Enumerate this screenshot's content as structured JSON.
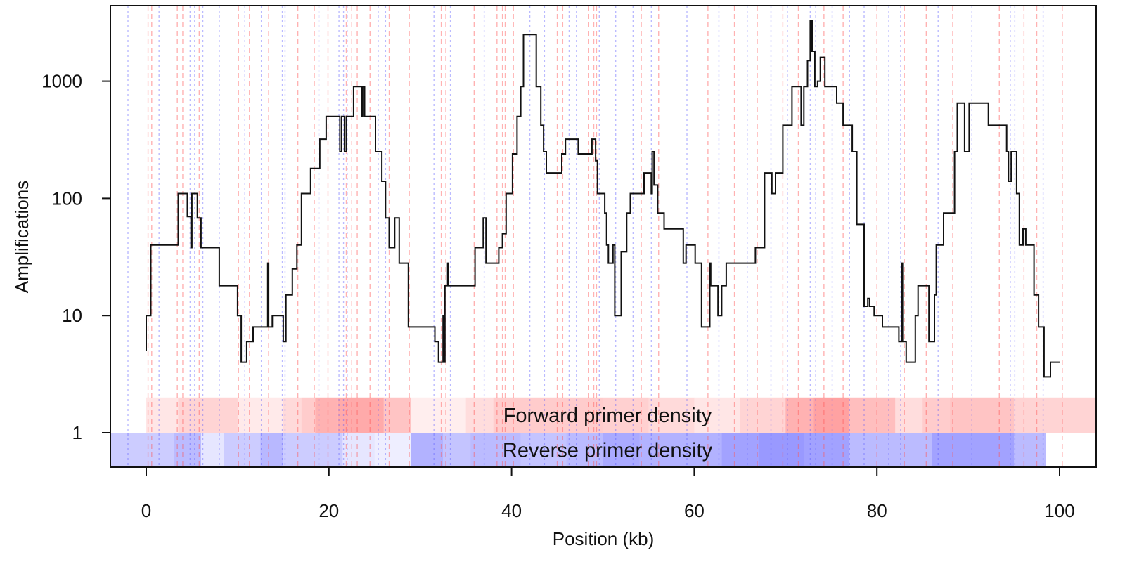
{
  "chart_data": {
    "type": "line",
    "xlabel": "Position (kb)",
    "ylabel": "Amplifications",
    "xlim": [
      -4,
      104
    ],
    "ylim": [
      0.5,
      4500
    ],
    "yscale": "log",
    "xticks": [
      0,
      20,
      40,
      60,
      80,
      100
    ],
    "yticks": [
      1,
      10,
      100,
      1000
    ],
    "colors": {
      "line": "#111111",
      "forward": "#ff5555",
      "reverse": "#5555ff",
      "frame": "#111111"
    },
    "amplification_profile": {
      "name": "",
      "points": [
        [
          0.0,
          5
        ],
        [
          0.0,
          10
        ],
        [
          0.5,
          10
        ],
        [
          0.5,
          40
        ],
        [
          3.5,
          40
        ],
        [
          3.5,
          110
        ],
        [
          4.5,
          110
        ],
        [
          4.5,
          70
        ],
        [
          4.9,
          70
        ],
        [
          4.9,
          38
        ],
        [
          5.0,
          38
        ],
        [
          5.0,
          110
        ],
        [
          5.6,
          110
        ],
        [
          5.6,
          68
        ],
        [
          6.0,
          68
        ],
        [
          6.0,
          38
        ],
        [
          8.0,
          38
        ],
        [
          8.0,
          18
        ],
        [
          10.0,
          18
        ],
        [
          10.0,
          10
        ],
        [
          10.4,
          10
        ],
        [
          10.4,
          4
        ],
        [
          11.0,
          4
        ],
        [
          11.0,
          6
        ],
        [
          11.7,
          6
        ],
        [
          11.7,
          8
        ],
        [
          13.3,
          8
        ],
        [
          13.3,
          28
        ],
        [
          13.4,
          28
        ],
        [
          13.4,
          8
        ],
        [
          13.8,
          8
        ],
        [
          13.8,
          10
        ],
        [
          15.0,
          10
        ],
        [
          15.0,
          6
        ],
        [
          15.3,
          6
        ],
        [
          15.3,
          15
        ],
        [
          16.0,
          15
        ],
        [
          16.0,
          25
        ],
        [
          16.5,
          25
        ],
        [
          16.5,
          40
        ],
        [
          17.0,
          40
        ],
        [
          17.0,
          110
        ],
        [
          18.0,
          110
        ],
        [
          18.0,
          180
        ],
        [
          19.0,
          180
        ],
        [
          19.0,
          320
        ],
        [
          19.7,
          320
        ],
        [
          19.7,
          500
        ],
        [
          21.2,
          500
        ],
        [
          21.2,
          250
        ],
        [
          21.4,
          250
        ],
        [
          21.4,
          500
        ],
        [
          21.7,
          500
        ],
        [
          21.7,
          250
        ],
        [
          21.9,
          250
        ],
        [
          21.9,
          500
        ],
        [
          22.7,
          500
        ],
        [
          22.7,
          900
        ],
        [
          23.6,
          900
        ],
        [
          23.6,
          500
        ],
        [
          23.7,
          500
        ],
        [
          23.7,
          900
        ],
        [
          23.9,
          900
        ],
        [
          23.9,
          500
        ],
        [
          25.1,
          500
        ],
        [
          25.1,
          250
        ],
        [
          25.8,
          250
        ],
        [
          25.8,
          140
        ],
        [
          26.2,
          140
        ],
        [
          26.2,
          68
        ],
        [
          26.6,
          68
        ],
        [
          26.6,
          38
        ],
        [
          27.2,
          38
        ],
        [
          27.2,
          68
        ],
        [
          27.7,
          68
        ],
        [
          27.7,
          28
        ],
        [
          28.7,
          28
        ],
        [
          28.7,
          8
        ],
        [
          31.6,
          8
        ],
        [
          31.6,
          6
        ],
        [
          32.0,
          6
        ],
        [
          32.0,
          4
        ],
        [
          32.5,
          4
        ],
        [
          32.5,
          10
        ],
        [
          32.6,
          10
        ],
        [
          32.6,
          4
        ],
        [
          32.7,
          4
        ],
        [
          32.7,
          18
        ],
        [
          33.0,
          18
        ],
        [
          33.0,
          28
        ],
        [
          33.1,
          28
        ],
        [
          33.1,
          18
        ],
        [
          36.0,
          18
        ],
        [
          36.0,
          38
        ],
        [
          36.9,
          38
        ],
        [
          36.9,
          68
        ],
        [
          37.2,
          68
        ],
        [
          37.2,
          28
        ],
        [
          38.6,
          28
        ],
        [
          38.6,
          38
        ],
        [
          39.0,
          38
        ],
        [
          39.0,
          50
        ],
        [
          39.4,
          50
        ],
        [
          39.4,
          110
        ],
        [
          40.1,
          110
        ],
        [
          40.1,
          240
        ],
        [
          40.6,
          240
        ],
        [
          40.6,
          500
        ],
        [
          41.0,
          500
        ],
        [
          41.0,
          900
        ],
        [
          41.3,
          900
        ],
        [
          41.3,
          2500
        ],
        [
          42.7,
          2500
        ],
        [
          42.7,
          900
        ],
        [
          43.2,
          900
        ],
        [
          43.2,
          420
        ],
        [
          43.5,
          420
        ],
        [
          43.5,
          250
        ],
        [
          43.8,
          250
        ],
        [
          43.8,
          165
        ],
        [
          45.5,
          165
        ],
        [
          45.5,
          240
        ],
        [
          45.9,
          240
        ],
        [
          45.9,
          320
        ],
        [
          47.3,
          320
        ],
        [
          47.3,
          240
        ],
        [
          48.8,
          240
        ],
        [
          48.8,
          320
        ],
        [
          49.2,
          320
        ],
        [
          49.2,
          210
        ],
        [
          49.4,
          210
        ],
        [
          49.4,
          110
        ],
        [
          50.2,
          110
        ],
        [
          50.2,
          75
        ],
        [
          50.4,
          75
        ],
        [
          50.4,
          40
        ],
        [
          50.6,
          40
        ],
        [
          50.6,
          28
        ],
        [
          51.1,
          28
        ],
        [
          51.1,
          40
        ],
        [
          51.3,
          40
        ],
        [
          51.3,
          10
        ],
        [
          52.0,
          10
        ],
        [
          52.0,
          35
        ],
        [
          52.6,
          35
        ],
        [
          52.6,
          75
        ],
        [
          53.0,
          75
        ],
        [
          53.0,
          110
        ],
        [
          54.5,
          110
        ],
        [
          54.5,
          165
        ],
        [
          55.3,
          165
        ],
        [
          55.3,
          110
        ],
        [
          55.4,
          110
        ],
        [
          55.4,
          250
        ],
        [
          55.6,
          250
        ],
        [
          55.6,
          130
        ],
        [
          56.0,
          130
        ],
        [
          56.0,
          75
        ],
        [
          56.7,
          75
        ],
        [
          56.7,
          55
        ],
        [
          58.8,
          55
        ],
        [
          58.8,
          28
        ],
        [
          59.1,
          28
        ],
        [
          59.1,
          40
        ],
        [
          60.1,
          40
        ],
        [
          60.1,
          28
        ],
        [
          60.8,
          28
        ],
        [
          60.8,
          8
        ],
        [
          61.7,
          8
        ],
        [
          61.7,
          28
        ],
        [
          61.8,
          28
        ],
        [
          61.8,
          18
        ],
        [
          62.6,
          18
        ],
        [
          62.6,
          10
        ],
        [
          63.0,
          10
        ],
        [
          63.0,
          18
        ],
        [
          63.5,
          18
        ],
        [
          63.5,
          28
        ],
        [
          66.7,
          28
        ],
        [
          66.7,
          38
        ],
        [
          67.7,
          38
        ],
        [
          67.7,
          165
        ],
        [
          68.5,
          165
        ],
        [
          68.5,
          110
        ],
        [
          68.9,
          110
        ],
        [
          68.9,
          165
        ],
        [
          69.7,
          165
        ],
        [
          69.7,
          420
        ],
        [
          70.7,
          420
        ],
        [
          70.7,
          900
        ],
        [
          71.7,
          900
        ],
        [
          71.7,
          420
        ],
        [
          72.0,
          420
        ],
        [
          72.0,
          900
        ],
        [
          72.4,
          900
        ],
        [
          72.4,
          1500
        ],
        [
          72.7,
          1500
        ],
        [
          72.7,
          3300
        ],
        [
          72.9,
          3300
        ],
        [
          72.9,
          1800
        ],
        [
          73.2,
          1800
        ],
        [
          73.2,
          900
        ],
        [
          73.5,
          900
        ],
        [
          73.5,
          1000
        ],
        [
          73.8,
          1000
        ],
        [
          73.8,
          1600
        ],
        [
          74.3,
          1600
        ],
        [
          74.3,
          900
        ],
        [
          75.6,
          900
        ],
        [
          75.6,
          650
        ],
        [
          76.3,
          650
        ],
        [
          76.3,
          420
        ],
        [
          77.3,
          420
        ],
        [
          77.3,
          250
        ],
        [
          77.8,
          250
        ],
        [
          77.8,
          60
        ],
        [
          78.6,
          60
        ],
        [
          78.6,
          12
        ],
        [
          79.0,
          12
        ],
        [
          79.0,
          14
        ],
        [
          79.2,
          14
        ],
        [
          79.2,
          12
        ],
        [
          79.7,
          12
        ],
        [
          79.7,
          10
        ],
        [
          80.6,
          10
        ],
        [
          80.6,
          8
        ],
        [
          82.4,
          8
        ],
        [
          82.4,
          6
        ],
        [
          82.7,
          6
        ],
        [
          82.7,
          28
        ],
        [
          82.8,
          28
        ],
        [
          82.8,
          6
        ],
        [
          83.2,
          6
        ],
        [
          83.2,
          4
        ],
        [
          84.2,
          4
        ],
        [
          84.2,
          10
        ],
        [
          84.5,
          10
        ],
        [
          84.5,
          18
        ],
        [
          85.7,
          18
        ],
        [
          85.7,
          6
        ],
        [
          86.3,
          6
        ],
        [
          86.3,
          15
        ],
        [
          86.5,
          15
        ],
        [
          86.5,
          40
        ],
        [
          87.3,
          40
        ],
        [
          87.3,
          75
        ],
        [
          88.5,
          75
        ],
        [
          88.5,
          250
        ],
        [
          88.8,
          250
        ],
        [
          88.8,
          650
        ],
        [
          89.6,
          650
        ],
        [
          89.6,
          250
        ],
        [
          90.1,
          250
        ],
        [
          90.1,
          650
        ],
        [
          92.2,
          650
        ],
        [
          92.2,
          420
        ],
        [
          94.2,
          420
        ],
        [
          94.2,
          250
        ],
        [
          94.4,
          250
        ],
        [
          94.4,
          140
        ],
        [
          94.7,
          140
        ],
        [
          94.7,
          250
        ],
        [
          95.3,
          250
        ],
        [
          95.3,
          110
        ],
        [
          95.6,
          110
        ],
        [
          95.6,
          40
        ],
        [
          96.0,
          40
        ],
        [
          96.0,
          55
        ],
        [
          96.3,
          55
        ],
        [
          96.3,
          40
        ],
        [
          97.2,
          40
        ],
        [
          97.2,
          15
        ],
        [
          97.7,
          15
        ],
        [
          97.7,
          8
        ],
        [
          98.3,
          8
        ],
        [
          98.3,
          3
        ],
        [
          99.0,
          3
        ],
        [
          99.0,
          4
        ],
        [
          100.0,
          4
        ]
      ]
    },
    "forward_primer_density": {
      "label": "Forward primer density",
      "y_range": [
        1,
        2
      ],
      "segments": [
        [
          0.0,
          3.5,
          0.15
        ],
        [
          3.5,
          10.0,
          0.25
        ],
        [
          10.0,
          15.0,
          0.12
        ],
        [
          15.0,
          17.0,
          0.22
        ],
        [
          17.0,
          18.5,
          0.3
        ],
        [
          18.5,
          21.0,
          0.45
        ],
        [
          21.0,
          26.0,
          0.5
        ],
        [
          26.0,
          29.0,
          0.35
        ],
        [
          29.0,
          35.0,
          0.1
        ],
        [
          35.0,
          38.0,
          0.2
        ],
        [
          38.0,
          44.0,
          0.3
        ],
        [
          44.0,
          50.0,
          0.3
        ],
        [
          50.0,
          55.0,
          0.28
        ],
        [
          55.0,
          60.0,
          0.22
        ],
        [
          60.0,
          65.0,
          0.15
        ],
        [
          65.0,
          70.0,
          0.25
        ],
        [
          70.0,
          73.0,
          0.45
        ],
        [
          73.0,
          77.0,
          0.55
        ],
        [
          77.0,
          82.0,
          0.38
        ],
        [
          82.0,
          85.0,
          0.2
        ],
        [
          85.0,
          88.0,
          0.3
        ],
        [
          88.0,
          95.0,
          0.35
        ],
        [
          95.0,
          100.0,
          0.25
        ],
        [
          100.0,
          104.0,
          0.25
        ]
      ]
    },
    "reverse_primer_density": {
      "label": "Reverse primer density",
      "y_range": [
        0.5,
        1
      ],
      "segments": [
        [
          -4.0,
          3.0,
          0.3
        ],
        [
          3.0,
          6.0,
          0.4
        ],
        [
          6.0,
          8.5,
          0.15
        ],
        [
          8.5,
          12.5,
          0.3
        ],
        [
          12.5,
          15.0,
          0.42
        ],
        [
          15.0,
          21.5,
          0.3
        ],
        [
          21.5,
          25.0,
          0.15
        ],
        [
          25.0,
          29.0,
          0.1
        ],
        [
          29.0,
          32.5,
          0.45
        ],
        [
          32.5,
          35.5,
          0.35
        ],
        [
          35.5,
          41.0,
          0.4
        ],
        [
          41.0,
          46.0,
          0.35
        ],
        [
          46.0,
          50.0,
          0.4
        ],
        [
          50.0,
          54.0,
          0.5
        ],
        [
          54.0,
          63.0,
          0.45
        ],
        [
          63.0,
          67.0,
          0.55
        ],
        [
          67.0,
          72.0,
          0.6
        ],
        [
          72.0,
          77.0,
          0.55
        ],
        [
          77.0,
          86.0,
          0.4
        ],
        [
          86.0,
          95.0,
          0.55
        ],
        [
          95.0,
          98.5,
          0.4
        ],
        [
          98.5,
          104.0,
          0.0
        ]
      ]
    },
    "forward_primer_positions": [
      0.2,
      0.6,
      3.4,
      4.0,
      5.8,
      10.1,
      11.3,
      13.4,
      16.6,
      18.4,
      19.9,
      21.9,
      22.5,
      23.1,
      24.5,
      26.6,
      28.8,
      32.3,
      32.8,
      35.9,
      38.4,
      39.0,
      39.3,
      40.2,
      45.0,
      45.6,
      48.4,
      49.0,
      49.3,
      54.2,
      56.1,
      61.5,
      64.4,
      66.9,
      69.7,
      71.4,
      74.2,
      76.3,
      80.0,
      83.0,
      85.4,
      88.3,
      93.4,
      96.1,
      97.5,
      100.3
    ],
    "reverse_primer_positions": [
      -2.0,
      1.4,
      4.8,
      5.3,
      6.2,
      8.0,
      10.8,
      12.6,
      14.9,
      15.2,
      18.9,
      21.1,
      21.6,
      22.0,
      25.4,
      26.2,
      31.5,
      33.3,
      37.0,
      42.0,
      43.6,
      46.3,
      47.1,
      49.6,
      51.4,
      53.3,
      55.3,
      59.2,
      62.7,
      65.8,
      68.4,
      70.2,
      72.7,
      73.3,
      75.1,
      77.0,
      78.6,
      81.3,
      82.6,
      86.7,
      90.4,
      94.6,
      95.1,
      98.2
    ]
  }
}
